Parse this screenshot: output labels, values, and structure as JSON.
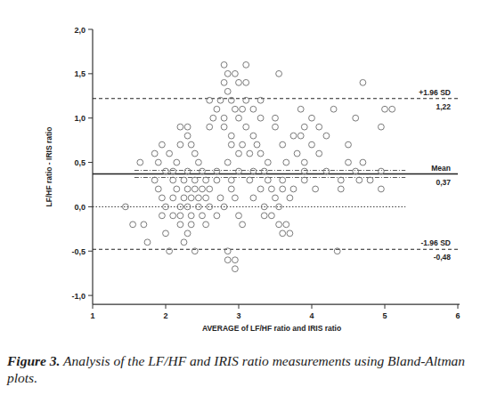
{
  "chart_data": {
    "type": "scatter",
    "x_label": "AVERAGE of LF/HF ratio and IRIS ratio",
    "y_label": "LF/HF ratio - IRIS ratio",
    "caption_label": "Figure 3.",
    "caption": "Analysis of the LF/HF and IRIS ratio measurements using Bland-Altman plots.",
    "xlim": [
      1,
      6
    ],
    "ylim": [
      -1.1,
      2.0
    ],
    "xticks": [
      1,
      2,
      3,
      4,
      5,
      6
    ],
    "yticks": [
      {
        "value": -1.0,
        "label": "-1,0"
      },
      {
        "value": -0.5,
        "label": "-0,5"
      },
      {
        "value": 0.0,
        "label": "0,0"
      },
      {
        "value": 0.5,
        "label": "0,5"
      },
      {
        "value": 1.0,
        "label": "1,0"
      },
      {
        "value": 1.5,
        "label": "1,5"
      },
      {
        "value": 2.0,
        "label": "2,0"
      }
    ],
    "color": "#7a7a7a",
    "marker": "open-circle",
    "grid": false,
    "reference_lines": [
      {
        "name": "+1.96 SD",
        "value": 1.22,
        "value_label": "1,22",
        "line_style": "dashed"
      },
      {
        "name": "Mean",
        "value": 0.37,
        "value_label": "0,37",
        "line_style": "solid"
      },
      {
        "name": "-1.96 SD",
        "value": -0.48,
        "value_label": "-0,48",
        "line_style": "dashed"
      }
    ],
    "mean_ci": [
      0.33,
      0.41
    ],
    "zero_line": 0,
    "x": [
      2.8,
      3.1,
      2.85,
      2.95,
      3.55,
      2.8,
      3.0,
      3.1,
      4.7,
      2.85,
      2.6,
      2.75,
      2.9,
      3.1,
      3.3,
      2.7,
      2.95,
      3.05,
      3.2,
      3.85,
      4.3,
      5.0,
      5.1,
      2.65,
      2.8,
      3.0,
      3.3,
      3.5,
      4.0,
      4.6,
      2.2,
      2.3,
      2.6,
      2.8,
      3.1,
      3.5,
      3.9,
      4.1,
      4.95,
      2.3,
      2.9,
      3.2,
      3.75,
      3.85,
      4.2,
      1.95,
      2.2,
      2.35,
      2.9,
      3.05,
      3.25,
      3.6,
      4.0,
      4.5,
      1.85,
      2.05,
      2.4,
      3.0,
      3.15,
      3.3,
      3.8,
      4.1,
      1.65,
      1.9,
      2.15,
      2.45,
      2.85,
      3.4,
      3.65,
      3.9,
      4.5,
      4.7,
      2.0,
      2.1,
      2.3,
      2.5,
      2.7,
      3.0,
      3.2,
      3.35,
      3.9,
      4.2,
      4.6,
      4.95,
      1.85,
      2.1,
      2.25,
      2.4,
      2.55,
      2.7,
      2.9,
      3.15,
      3.4,
      3.6,
      3.9,
      4.4,
      4.65,
      4.8,
      1.9,
      2.15,
      2.3,
      2.4,
      2.5,
      2.6,
      2.9,
      3.3,
      3.45,
      3.6,
      3.75,
      4.05,
      4.4,
      4.95,
      1.95,
      2.1,
      2.25,
      2.35,
      2.45,
      2.55,
      2.75,
      2.95,
      3.2,
      3.5,
      3.7,
      1.45,
      2.0,
      2.2,
      2.3,
      2.45,
      2.6,
      2.8,
      3.35,
      3.55,
      1.95,
      2.1,
      2.2,
      2.35,
      2.5,
      2.7,
      3.0,
      3.35,
      3.45,
      1.55,
      1.7,
      2.2,
      2.35,
      2.55,
      3.05,
      3.55,
      3.65,
      2.0,
      2.3,
      3.6,
      3.7,
      1.75,
      2.25,
      2.05,
      2.4,
      2.85,
      4.35,
      2.85,
      2.95,
      2.95
    ],
    "values": [
      1.6,
      1.6,
      1.5,
      1.5,
      1.5,
      1.4,
      1.4,
      1.4,
      1.4,
      1.3,
      1.2,
      1.2,
      1.2,
      1.2,
      1.2,
      1.1,
      1.1,
      1.1,
      1.1,
      1.1,
      1.1,
      1.1,
      1.1,
      1.0,
      1.0,
      1.0,
      1.0,
      1.0,
      1.0,
      1.0,
      0.9,
      0.9,
      0.9,
      0.9,
      0.9,
      0.9,
      0.9,
      0.9,
      0.9,
      0.8,
      0.8,
      0.8,
      0.8,
      0.8,
      0.8,
      0.7,
      0.7,
      0.7,
      0.7,
      0.7,
      0.7,
      0.7,
      0.7,
      0.7,
      0.6,
      0.6,
      0.6,
      0.6,
      0.6,
      0.6,
      0.6,
      0.6,
      0.5,
      0.5,
      0.5,
      0.5,
      0.5,
      0.5,
      0.5,
      0.5,
      0.5,
      0.5,
      0.4,
      0.4,
      0.4,
      0.4,
      0.4,
      0.4,
      0.4,
      0.4,
      0.4,
      0.4,
      0.4,
      0.4,
      0.3,
      0.3,
      0.3,
      0.3,
      0.3,
      0.3,
      0.3,
      0.3,
      0.3,
      0.3,
      0.3,
      0.3,
      0.3,
      0.3,
      0.2,
      0.2,
      0.2,
      0.2,
      0.2,
      0.2,
      0.2,
      0.2,
      0.2,
      0.2,
      0.2,
      0.2,
      0.2,
      0.2,
      0.1,
      0.1,
      0.1,
      0.1,
      0.1,
      0.1,
      0.1,
      0.1,
      0.1,
      0.1,
      0.1,
      0.0,
      0.0,
      0.0,
      0.0,
      0.0,
      0.0,
      0.0,
      0.0,
      0.0,
      -0.1,
      -0.1,
      -0.1,
      -0.1,
      -0.1,
      -0.1,
      -0.1,
      -0.1,
      -0.1,
      -0.2,
      -0.2,
      -0.2,
      -0.2,
      -0.2,
      -0.2,
      -0.2,
      -0.2,
      -0.3,
      -0.3,
      -0.3,
      -0.3,
      -0.4,
      -0.4,
      -0.5,
      -0.5,
      -0.5,
      -0.5,
      -0.6,
      -0.6,
      -0.7
    ]
  }
}
